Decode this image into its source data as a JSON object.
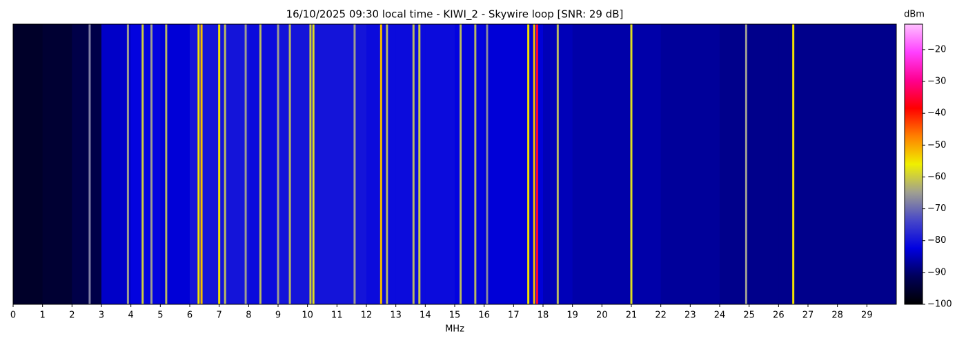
{
  "chart_data": {
    "type": "spectrogram",
    "title": "16/10/2025 09:30 local time - KIWI_2 - Skywire loop [SNR: 29 dB]",
    "xlabel": "MHz",
    "colorbar_label": "dBm",
    "xlim": [
      0,
      30
    ],
    "xticks": [
      0,
      1,
      2,
      3,
      4,
      5,
      6,
      7,
      8,
      9,
      10,
      11,
      12,
      13,
      14,
      15,
      16,
      17,
      18,
      19,
      20,
      21,
      22,
      23,
      24,
      25,
      26,
      27,
      28,
      29
    ],
    "clim": [
      -100,
      -12
    ],
    "cticks": [
      {
        "value": -20,
        "label": "−20"
      },
      {
        "value": -30,
        "label": "−30"
      },
      {
        "value": -40,
        "label": "−40"
      },
      {
        "value": -50,
        "label": "−50"
      },
      {
        "value": -60,
        "label": "−60"
      },
      {
        "value": -70,
        "label": "−70"
      },
      {
        "value": -80,
        "label": "−80"
      },
      {
        "value": -90,
        "label": "−90"
      },
      {
        "value": -100,
        "label": "−100"
      }
    ],
    "colormap": [
      "#000000",
      "#00005a",
      "#0000e0",
      "#4848c8",
      "#a0a090",
      "#f0f000",
      "#ff8000",
      "#ff0000",
      "#ff0090",
      "#ff40ff",
      "#ffc0ff"
    ],
    "background": {
      "bins": [
        0,
        1,
        2,
        3,
        4,
        5,
        6,
        7,
        8,
        9,
        10,
        11,
        12,
        13,
        14,
        15,
        16,
        17,
        18,
        19,
        20,
        21,
        22,
        23,
        24,
        25,
        26,
        27,
        28,
        29,
        30
      ],
      "values": [
        -96,
        -95,
        -93,
        -84,
        -82,
        -83,
        -80,
        -80,
        -81,
        -80,
        -80,
        -80,
        -81,
        -81,
        -81,
        -82,
        -83,
        -83,
        -85,
        -86,
        -86,
        -86,
        -87,
        -87,
        -88,
        -88,
        -88,
        -88,
        -88,
        -88
      ]
    },
    "signals": {
      "x": [
        2.6,
        3.9,
        4.4,
        4.7,
        5.2,
        6.3,
        6.4,
        7.0,
        7.2,
        7.9,
        8.4,
        9.0,
        9.4,
        10.1,
        10.2,
        11.6,
        12.5,
        12.7,
        13.6,
        13.8,
        15.2,
        15.7,
        16.1,
        17.5,
        17.7,
        17.8,
        18.5,
        21.0,
        24.9,
        26.5
      ],
      "values": [
        -68,
        -65,
        -60,
        -65,
        -62,
        -55,
        -52,
        -55,
        -62,
        -65,
        -62,
        -65,
        -62,
        -60,
        -58,
        -65,
        -52,
        -62,
        -62,
        -60,
        -62,
        -62,
        -67,
        -55,
        -52,
        -35,
        -62,
        -58,
        -65,
        -55
      ]
    }
  }
}
